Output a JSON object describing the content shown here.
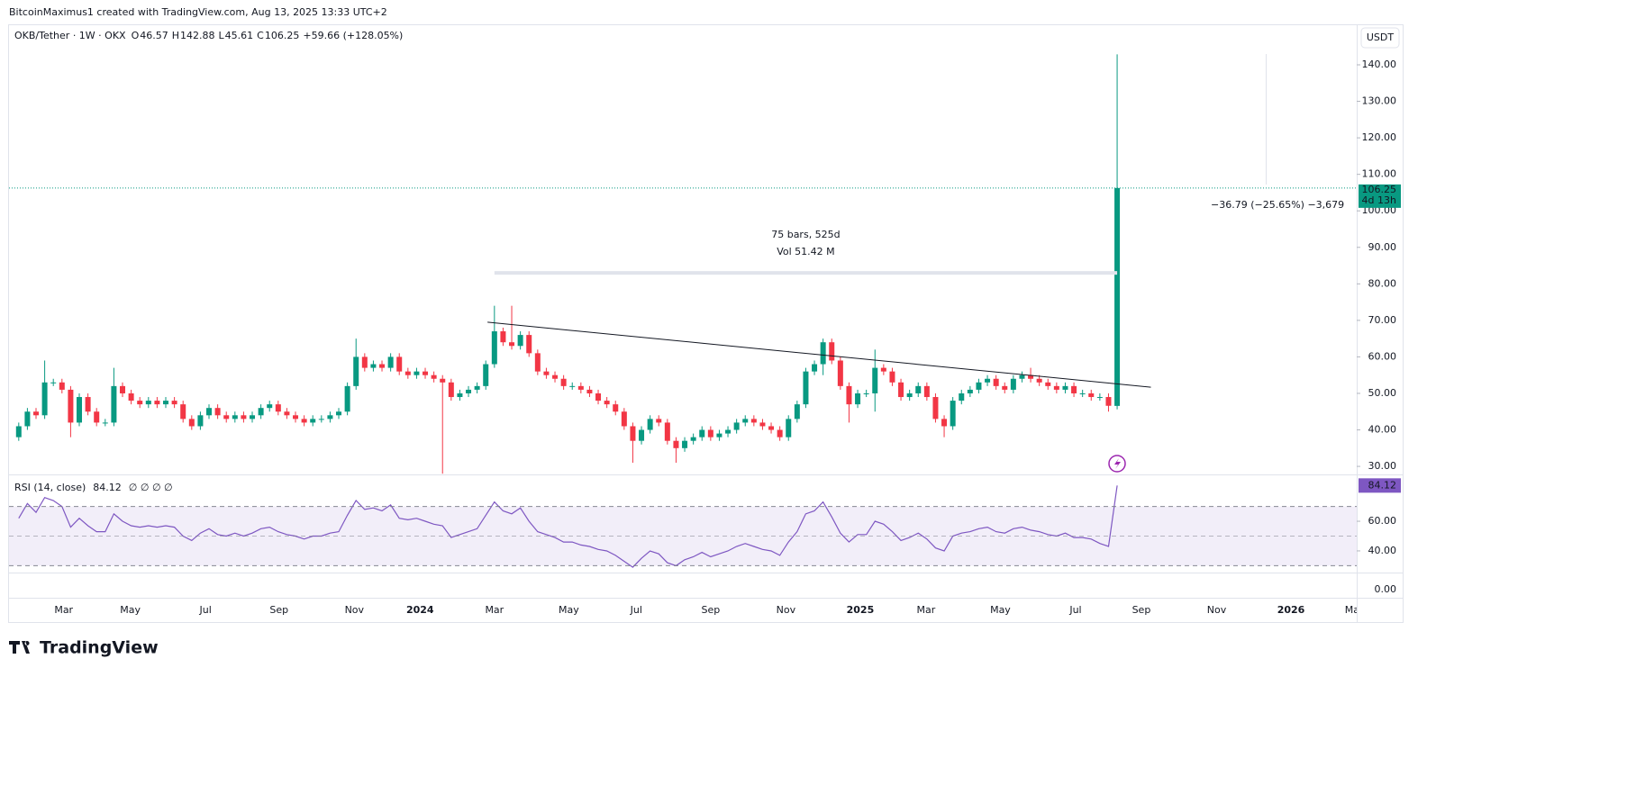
{
  "header": {
    "attribution": "BitcoinMaximus1 created with TradingView.com, Aug 13, 2025 13:33 UTC+2",
    "symbol": "OKB/Tether · 1W · OKX",
    "ohlc_labels": [
      "O",
      "H",
      "L",
      "C"
    ],
    "change": "+59.66 (+128.05%)",
    "currency": "USDT"
  },
  "chart_data": {
    "type": "candlestick",
    "open": [
      38,
      41,
      45,
      44,
      53,
      53,
      51,
      42,
      49,
      45,
      42,
      42,
      52,
      50,
      48,
      47,
      48,
      47,
      48,
      47,
      43,
      41,
      44,
      46,
      44,
      43,
      44,
      43,
      44,
      46,
      47,
      45,
      44,
      43,
      42,
      43,
      43,
      44,
      45,
      52,
      60,
      57,
      58,
      57,
      60,
      56,
      55,
      56,
      55,
      54,
      53,
      49,
      50,
      51,
      52,
      58,
      67,
      64,
      63,
      66,
      61,
      56,
      55,
      54,
      52,
      52,
      51,
      50,
      48,
      47,
      45,
      41,
      37,
      40,
      43,
      42,
      37,
      35,
      37,
      38,
      40,
      38,
      39,
      40,
      42,
      43,
      42,
      41,
      40,
      38,
      43,
      47,
      56,
      58,
      64,
      59,
      52,
      47,
      50,
      50,
      57,
      56,
      53,
      49,
      50,
      52,
      49,
      43,
      41,
      48,
      50,
      51,
      53,
      54,
      52,
      51,
      54,
      55,
      54,
      53,
      52,
      51,
      52,
      50,
      50,
      49,
      49,
      46.57
    ],
    "high": [
      42,
      46,
      46,
      59,
      54,
      54,
      52,
      50,
      50,
      46,
      43,
      57,
      53,
      51,
      49,
      49,
      49,
      49,
      49,
      48,
      44,
      45,
      47,
      47,
      45,
      45,
      45,
      45,
      47,
      48,
      48,
      46,
      45,
      44,
      44,
      44,
      45,
      46,
      53,
      65,
      61,
      59,
      59,
      61,
      61,
      57,
      57,
      57,
      56,
      55,
      54,
      51,
      52,
      53,
      59,
      74,
      68,
      74,
      67,
      67,
      62,
      57,
      56,
      55,
      53,
      53,
      52,
      51,
      49,
      48,
      46,
      42,
      41,
      44,
      44,
      43,
      38,
      38,
      39,
      41,
      41,
      40,
      41,
      43,
      44,
      44,
      43,
      42,
      41,
      44,
      48,
      57,
      59,
      65,
      65,
      60,
      53,
      51,
      51,
      62,
      58,
      57,
      54,
      51,
      53,
      53,
      50,
      44,
      49,
      51,
      52,
      54,
      55,
      55,
      53,
      55,
      56,
      57,
      55,
      54,
      53,
      53,
      53,
      51,
      51,
      50,
      50,
      142.88
    ],
    "low": [
      37,
      40,
      43,
      43,
      52,
      50,
      38,
      41,
      44,
      41,
      41,
      41,
      49,
      47,
      46,
      46,
      46,
      46,
      46,
      42,
      40,
      40,
      43,
      43,
      42,
      42,
      42,
      42,
      43,
      45,
      44,
      43,
      42,
      41,
      41,
      42,
      42,
      43,
      44,
      51,
      56,
      56,
      56,
      56,
      55,
      54,
      54,
      54,
      53,
      28,
      48,
      48,
      49,
      50,
      51,
      57,
      63,
      62,
      62,
      60,
      55,
      54,
      53,
      51,
      51,
      50,
      49,
      47,
      46,
      44,
      40,
      31,
      36,
      39,
      41,
      36,
      31,
      34,
      36,
      37,
      37,
      37,
      38,
      39,
      41,
      41,
      40,
      39,
      37,
      37,
      42,
      46,
      55,
      55,
      58,
      51,
      42,
      46,
      49,
      45,
      55,
      52,
      48,
      48,
      49,
      48,
      42,
      38,
      40,
      47,
      49,
      50,
      52,
      51,
      50,
      50,
      53,
      53,
      52,
      51,
      50,
      50,
      49,
      49,
      48,
      48,
      45,
      45.61
    ],
    "close": [
      41,
      45,
      44,
      53,
      53,
      51,
      42,
      49,
      45,
      42,
      42,
      52,
      50,
      48,
      47,
      48,
      47,
      48,
      47,
      43,
      41,
      44,
      46,
      44,
      43,
      44,
      43,
      44,
      46,
      47,
      45,
      44,
      43,
      42,
      43,
      43,
      44,
      45,
      52,
      60,
      57,
      58,
      57,
      60,
      56,
      55,
      56,
      55,
      54,
      53,
      49,
      50,
      51,
      52,
      58,
      67,
      64,
      63,
      66,
      61,
      56,
      55,
      54,
      52,
      52,
      51,
      50,
      48,
      47,
      45,
      41,
      37,
      40,
      43,
      42,
      37,
      35,
      37,
      38,
      40,
      38,
      39,
      40,
      42,
      43,
      42,
      41,
      40,
      38,
      43,
      47,
      56,
      58,
      64,
      59,
      52,
      47,
      50,
      50,
      57,
      56,
      53,
      49,
      50,
      52,
      49,
      43,
      41,
      48,
      50,
      51,
      53,
      54,
      52,
      51,
      54,
      55,
      54,
      53,
      52,
      51,
      52,
      50,
      50,
      49,
      49,
      46.6,
      106.25
    ],
    "colors": {
      "up": "#089981",
      "down": "#f23645"
    },
    "xlim": [
      -1.125,
      154.7
    ],
    "xticks": [
      {
        "value": 5.2,
        "label": "Mar"
      },
      {
        "value": 12.9,
        "label": "May"
      },
      {
        "value": 21.6,
        "label": "Jul"
      },
      {
        "value": 30.1,
        "label": "Sep"
      },
      {
        "value": 38.8,
        "label": "Nov"
      },
      {
        "value": 46.4,
        "label": "2024"
      },
      {
        "value": 55.0,
        "label": "Mar"
      },
      {
        "value": 63.6,
        "label": "May"
      },
      {
        "value": 71.4,
        "label": "Jul"
      },
      {
        "value": 80.0,
        "label": "Sep"
      },
      {
        "value": 88.7,
        "label": "Nov"
      },
      {
        "value": 97.3,
        "label": "2025"
      },
      {
        "value": 104.9,
        "label": "Mar"
      },
      {
        "value": 113.5,
        "label": "May"
      },
      {
        "value": 122.2,
        "label": "Jul"
      },
      {
        "value": 129.8,
        "label": "Sep"
      },
      {
        "value": 138.5,
        "label": "Nov"
      },
      {
        "value": 147.1,
        "label": "2026"
      },
      {
        "value": 154.4,
        "label": "Mar"
      }
    ],
    "ylim": [
      27.8,
      150.85
    ],
    "yticks": [
      {
        "value": 30,
        "label": "30.00"
      },
      {
        "value": 40,
        "label": "40.00"
      },
      {
        "value": 50,
        "label": "50.00"
      },
      {
        "value": 60,
        "label": "60.00"
      },
      {
        "value": 70,
        "label": "70.00"
      },
      {
        "value": 80,
        "label": "80.00"
      },
      {
        "value": 90,
        "label": "90.00"
      },
      {
        "value": 100,
        "label": "100.00"
      },
      {
        "value": 110,
        "label": "110.00"
      },
      {
        "value": 120,
        "label": "120.00"
      },
      {
        "value": 130,
        "label": "130.00"
      },
      {
        "value": 140,
        "label": "140.00"
      }
    ],
    "countdown": "4d 13h",
    "trendline": {
      "x": [
        54.2,
        130.9
      ],
      "y": [
        69.5,
        51.7
      ]
    },
    "measure": {
      "bars": "75 bars, 525d",
      "volume": "Vol 51.42 M",
      "price": 83,
      "x": [
        55,
        127
      ]
    },
    "annotation": "−36.79 (−25.65%) −3,679"
  },
  "rsi": {
    "type": "line",
    "name": "RSI (14, close)",
    "placeholders": "∅ ∅ ∅ ∅",
    "color": "#7e57c2",
    "values": [
      62,
      72,
      66,
      76,
      74,
      70,
      56,
      62,
      57,
      53,
      53,
      65,
      60,
      57,
      56,
      57,
      56,
      57,
      56,
      50,
      47,
      52,
      55,
      51,
      50,
      52,
      50,
      52,
      55,
      56,
      53,
      51,
      50,
      48,
      50,
      50,
      52,
      53,
      64,
      74,
      68,
      69,
      67,
      71,
      62,
      61,
      62,
      60,
      58,
      57,
      49,
      51,
      53,
      55,
      64,
      73,
      67,
      65,
      69,
      60,
      53,
      51,
      49,
      46,
      46,
      44,
      43,
      41,
      40,
      37,
      33,
      29,
      35,
      40,
      38,
      32,
      30,
      34,
      36,
      39,
      36,
      38,
      40,
      43,
      45,
      43,
      41,
      40,
      37,
      46,
      53,
      65,
      67,
      73,
      63,
      52,
      46,
      51,
      51,
      60,
      58,
      53,
      47,
      49,
      52,
      48,
      42,
      40,
      50,
      52,
      53,
      55,
      56,
      53,
      52,
      55,
      56,
      54,
      53,
      51,
      50,
      52,
      49,
      49,
      48,
      45,
      43,
      84.12
    ],
    "ylim": [
      26,
      91
    ],
    "yticks": [
      {
        "value": 40,
        "label": "40.00"
      },
      {
        "value": 60,
        "label": "60.00"
      }
    ],
    "levels": [
      70,
      50,
      30
    ]
  },
  "lower_pane": {
    "ytick": "0.00"
  },
  "footer": {
    "logo": "TradingView"
  }
}
